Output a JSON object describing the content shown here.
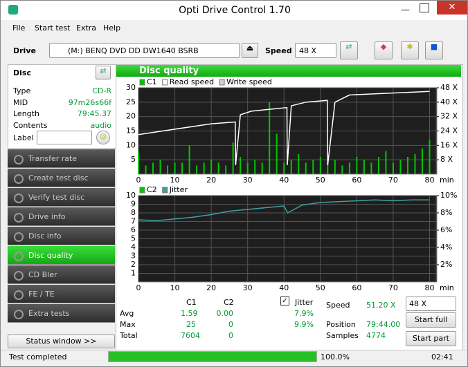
{
  "window": {
    "title": "Opti Drive Control 1.70"
  },
  "menu": [
    "File",
    "Start test",
    "Extra",
    "Help"
  ],
  "toolbar": {
    "drive_label": "Drive",
    "drive": "(M:)   BENQ DVD DD DW1640 BSRB",
    "speed_label": "Speed",
    "speed": "48 X"
  },
  "disc": {
    "title": "Disc",
    "rows": [
      [
        "Type",
        "CD-R"
      ],
      [
        "MID",
        "97m26s66f"
      ],
      [
        "Length",
        "79:45.37"
      ],
      [
        "Contents",
        "audio"
      ]
    ],
    "label": "Label"
  },
  "nav": [
    "Transfer rate",
    "Create test disc",
    "Verify test disc",
    "Drive info",
    "Disc info",
    "Disc quality",
    "CD Bler",
    "FE / TE",
    "Extra tests"
  ],
  "nav_active": 5,
  "status_window": "Status window >>",
  "panel_title": "Disc quality",
  "chart_data": [
    {
      "type": "bar",
      "x_unit": "min",
      "xlim": [
        0,
        82
      ],
      "xticks": [
        0,
        10,
        20,
        30,
        40,
        50,
        60,
        70,
        80
      ],
      "ylim": [
        0,
        30
      ],
      "yticks": [
        5,
        10,
        15,
        20,
        25,
        30
      ],
      "y2lim": [
        0,
        48
      ],
      "y2ticks": [
        {
          "value": 8,
          "label": "8 X"
        },
        {
          "value": 16,
          "label": "16 X"
        },
        {
          "value": 24,
          "label": "24 X"
        },
        {
          "value": 32,
          "label": "32 X"
        },
        {
          "value": 40,
          "label": "40 X"
        },
        {
          "value": 48,
          "label": "48 X"
        }
      ],
      "series": [
        {
          "name": "C1",
          "color": "#00c800",
          "x": [
            0,
            2,
            4,
            6,
            8,
            10,
            12,
            14,
            16,
            18,
            20,
            22,
            24,
            26,
            28,
            30,
            32,
            34,
            36,
            38,
            40,
            42,
            44,
            46,
            48,
            50,
            52,
            54,
            56,
            58,
            60,
            62,
            64,
            66,
            68,
            70,
            72,
            74,
            76,
            78,
            80
          ],
          "values": [
            8,
            3,
            4,
            5,
            3,
            4,
            4,
            10,
            3,
            4,
            5,
            4,
            3,
            11,
            6,
            4,
            5,
            4,
            25,
            14,
            4,
            5,
            7,
            4,
            5,
            6,
            4,
            5,
            3,
            4,
            6,
            5,
            4,
            6,
            8,
            4,
            5,
            6,
            7,
            9,
            12
          ]
        },
        {
          "name": "Read speed",
          "color": "#ffffff",
          "axis": "y2",
          "x": [
            0,
            10,
            20,
            26.6,
            26.7,
            28,
            31,
            40.8,
            40.9,
            42,
            46,
            51.9,
            52,
            54,
            58,
            80
          ],
          "values": [
            22,
            25,
            28,
            29,
            5,
            33,
            35,
            37,
            5,
            38,
            40,
            41,
            5,
            40,
            44,
            46
          ]
        },
        {
          "name": "Write speed",
          "color": "#d0d0d0",
          "x": [],
          "values": []
        }
      ]
    },
    {
      "type": "line",
      "x_unit": "min",
      "xlim": [
        0,
        82
      ],
      "xticks": [
        0,
        10,
        20,
        30,
        40,
        50,
        60,
        70,
        80
      ],
      "ylim": [
        0,
        10
      ],
      "yticks": [
        1,
        2,
        3,
        4,
        5,
        6,
        7,
        8,
        9,
        10
      ],
      "y2lim": [
        0,
        10
      ],
      "y2ticks": [
        {
          "value": 2,
          "label": "2%"
        },
        {
          "value": 4,
          "label": "4%"
        },
        {
          "value": 6,
          "label": "6%"
        },
        {
          "value": 8,
          "label": "8%"
        },
        {
          "value": 10,
          "label": "10%"
        }
      ],
      "series": [
        {
          "name": "C2",
          "color": "#00c800",
          "x": [],
          "values": []
        },
        {
          "name": "Jitter",
          "color": "#40a0a0",
          "axis": "y2",
          "x": [
            0,
            5,
            10,
            15,
            20,
            25,
            30,
            35,
            40,
            41,
            45,
            50,
            55,
            60,
            65,
            70,
            75,
            80
          ],
          "values": [
            7.2,
            7.1,
            7.3,
            7.5,
            7.8,
            8.2,
            8.4,
            8.6,
            8.8,
            8.0,
            8.9,
            9.2,
            9.3,
            9.4,
            9.5,
            9.4,
            9.5,
            9.5
          ]
        }
      ]
    }
  ],
  "stats": {
    "headers": [
      "C1",
      "C2"
    ],
    "jitter": "Jitter",
    "rows": [
      [
        "Avg",
        "1.59",
        "0.00",
        "7.9%"
      ],
      [
        "Max",
        "25",
        "0",
        "9.9%"
      ],
      [
        "Total",
        "7604",
        "0"
      ]
    ],
    "speed_label": "Speed",
    "speed": "51.20 X",
    "position_label": "Position",
    "position": "79:44.00",
    "samples_label": "Samples",
    "samples": "4774",
    "speed_select": "48 X",
    "start_full": "Start full",
    "start_part": "Start part"
  },
  "status": {
    "text": "Test completed",
    "progress": 100,
    "progress_label": "100.0%",
    "time": "02:41"
  }
}
